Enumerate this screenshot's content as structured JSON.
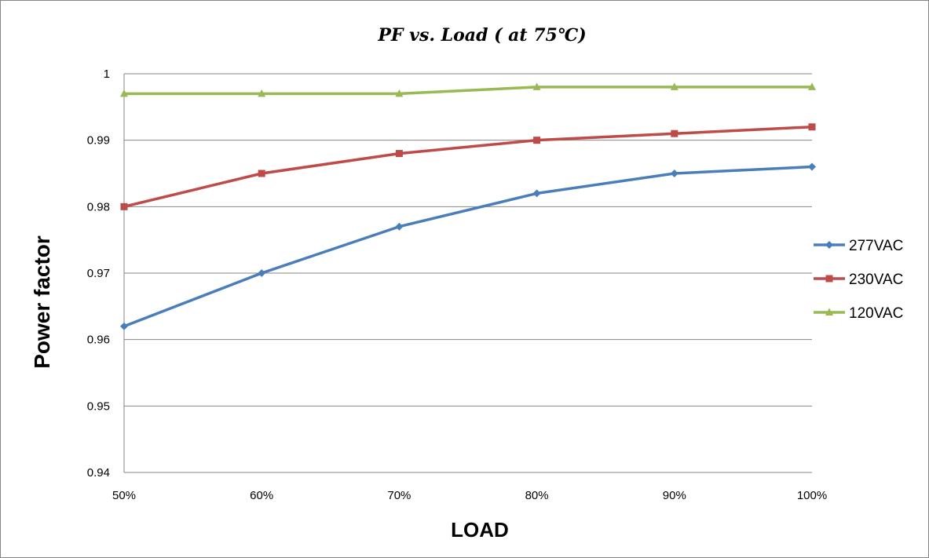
{
  "chart_data": {
    "type": "line",
    "title": "PF vs. Load ( at 75℃)",
    "xlabel": "LOAD",
    "ylabel": "Power factor",
    "categories": [
      "50%",
      "60%",
      "70%",
      "80%",
      "90%",
      "100%"
    ],
    "ylim": [
      0.94,
      1
    ],
    "yticks": [
      "0.94",
      "0.95",
      "0.96",
      "0.97",
      "0.98",
      "0.99",
      "1"
    ],
    "grid": true,
    "legend_position": "right",
    "series": [
      {
        "name": "277VAC",
        "color": "#4a7ebb",
        "marker": "diamond",
        "values": [
          0.962,
          0.97,
          0.977,
          0.982,
          0.985,
          0.986
        ]
      },
      {
        "name": "230VAC",
        "color": "#be4b48",
        "marker": "square",
        "values": [
          0.98,
          0.985,
          0.988,
          0.99,
          0.991,
          0.992
        ]
      },
      {
        "name": "120VAC",
        "color": "#98b954",
        "marker": "triangle",
        "values": [
          0.997,
          0.997,
          0.997,
          0.998,
          0.998,
          0.998
        ]
      }
    ]
  }
}
